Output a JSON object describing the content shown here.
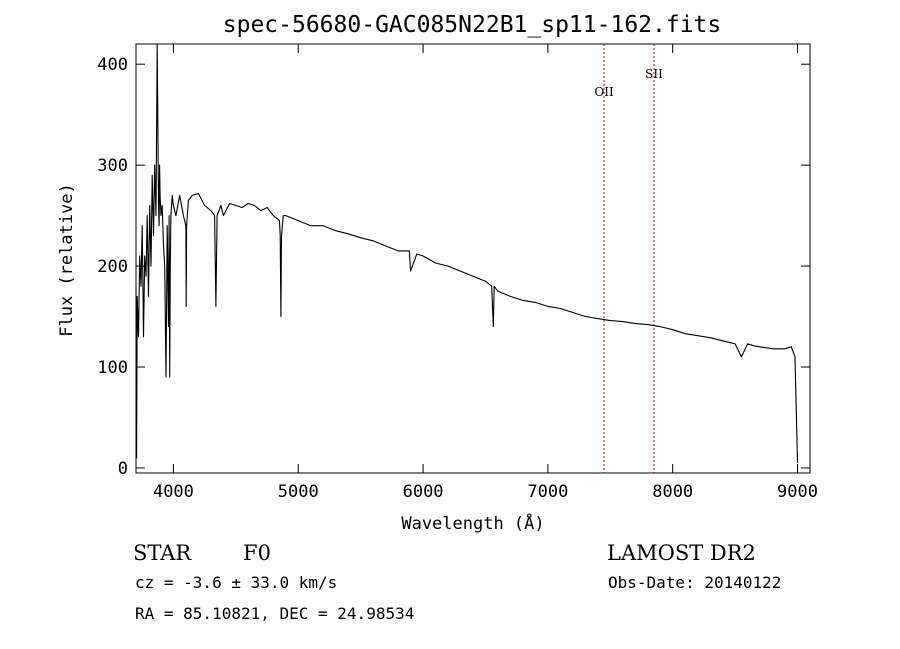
{
  "chart_data": {
    "type": "line",
    "title": "spec-56680-GAC085N22B1_sp11-162.fits",
    "xlabel": "Wavelength (Å)",
    "ylabel": "Flux (relative)",
    "xlim": [
      3700,
      9100
    ],
    "ylim": [
      -5,
      420
    ],
    "x_ticks": [
      4000,
      5000,
      6000,
      7000,
      8000,
      9000
    ],
    "y_ticks": [
      0,
      100,
      200,
      300,
      400
    ],
    "grid": false,
    "series": [
      {
        "color": "#000000",
        "x": [
          3700,
          3705,
          3710,
          3720,
          3730,
          3740,
          3750,
          3760,
          3770,
          3780,
          3790,
          3800,
          3810,
          3820,
          3830,
          3840,
          3850,
          3860,
          3870,
          3880,
          3885,
          3889,
          3893,
          3900,
          3910,
          3920,
          3930,
          3940,
          3950,
          3960,
          3965,
          3970,
          3975,
          3980,
          3990,
          4000,
          4020,
          4050,
          4080,
          4100,
          4102,
          4105,
          4120,
          4150,
          4200,
          4250,
          4300,
          4330,
          4340,
          4350,
          4380,
          4400,
          4450,
          4500,
          4550,
          4600,
          4650,
          4700,
          4750,
          4800,
          4850,
          4855,
          4861,
          4866,
          4880,
          4900,
          5000,
          5100,
          5200,
          5300,
          5400,
          5500,
          5600,
          5700,
          5800,
          5890,
          5900,
          5950,
          6000,
          6100,
          6200,
          6300,
          6400,
          6500,
          6550,
          6563,
          6570,
          6600,
          6700,
          6800,
          6900,
          7000,
          7100,
          7200,
          7300,
          7400,
          7500,
          7600,
          7700,
          7800,
          7900,
          8000,
          8100,
          8200,
          8300,
          8400,
          8500,
          8550,
          8600,
          8650,
          8700,
          8800,
          8900,
          8950,
          8980,
          9000
        ],
        "y": [
          180,
          10,
          170,
          130,
          210,
          180,
          240,
          130,
          210,
          190,
          250,
          170,
          260,
          200,
          290,
          230,
          300,
          250,
          420,
          260,
          240,
          300,
          270,
          250,
          260,
          220,
          200,
          90,
          240,
          140,
          250,
          90,
          200,
          250,
          270,
          260,
          250,
          270,
          250,
          240,
          160,
          240,
          265,
          270,
          272,
          260,
          255,
          250,
          160,
          250,
          260,
          250,
          262,
          260,
          258,
          262,
          260,
          255,
          258,
          250,
          245,
          230,
          150,
          230,
          250,
          250,
          245,
          240,
          240,
          235,
          232,
          228,
          225,
          220,
          215,
          215,
          195,
          212,
          210,
          203,
          200,
          195,
          190,
          185,
          180,
          140,
          180,
          175,
          170,
          166,
          164,
          160,
          158,
          154,
          150,
          148,
          146,
          145,
          143,
          142,
          140,
          137,
          133,
          131,
          129,
          126,
          123,
          110,
          123,
          121,
          120,
          118,
          118,
          120,
          110,
          5
        ]
      }
    ],
    "annotations": [
      {
        "label": "OII",
        "x": 7450
      },
      {
        "label": "SII",
        "x": 7850
      }
    ],
    "annotation_color": "#cc0000"
  },
  "info": {
    "object_class": "STAR",
    "subclass": "F0",
    "survey": "LAMOST DR2",
    "cz": "cz = -3.6 ± 33.0 km/s",
    "obs_date": "Obs-Date: 20140122",
    "coords": "RA =  85.10821, DEC =  24.98534"
  }
}
